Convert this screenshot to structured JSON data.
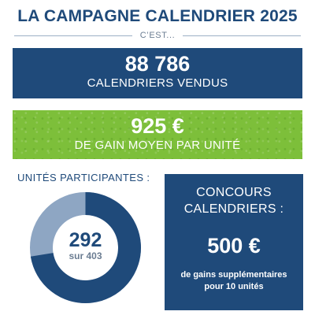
{
  "header": {
    "title": "LA CAMPAGNE CALENDRIER 2025",
    "subtitle": "C’EST..."
  },
  "calendars_sold": {
    "value": "88 786",
    "label": "CALENDRIERS VENDUS"
  },
  "average_gain": {
    "value": "925 €",
    "label": "DE GAIN MOYEN PAR UNITÉ"
  },
  "units": {
    "heading": "UNITÉS PARTICIPANTES :",
    "participating": 292,
    "total": 403,
    "value_text": "292",
    "total_text": "sur 403"
  },
  "contest": {
    "title_line1": "CONCOURS",
    "title_line2": "CALENDRIERS :",
    "amount": "500 €",
    "desc_line1": "de gains supplémentaires",
    "desc_line2": "pour 10 unités"
  },
  "colors": {
    "navy": "#1f4a7a",
    "green": "#7dbf3a",
    "donut_light": "#8ea6c3",
    "donut_dark": "#1f4a7a"
  }
}
